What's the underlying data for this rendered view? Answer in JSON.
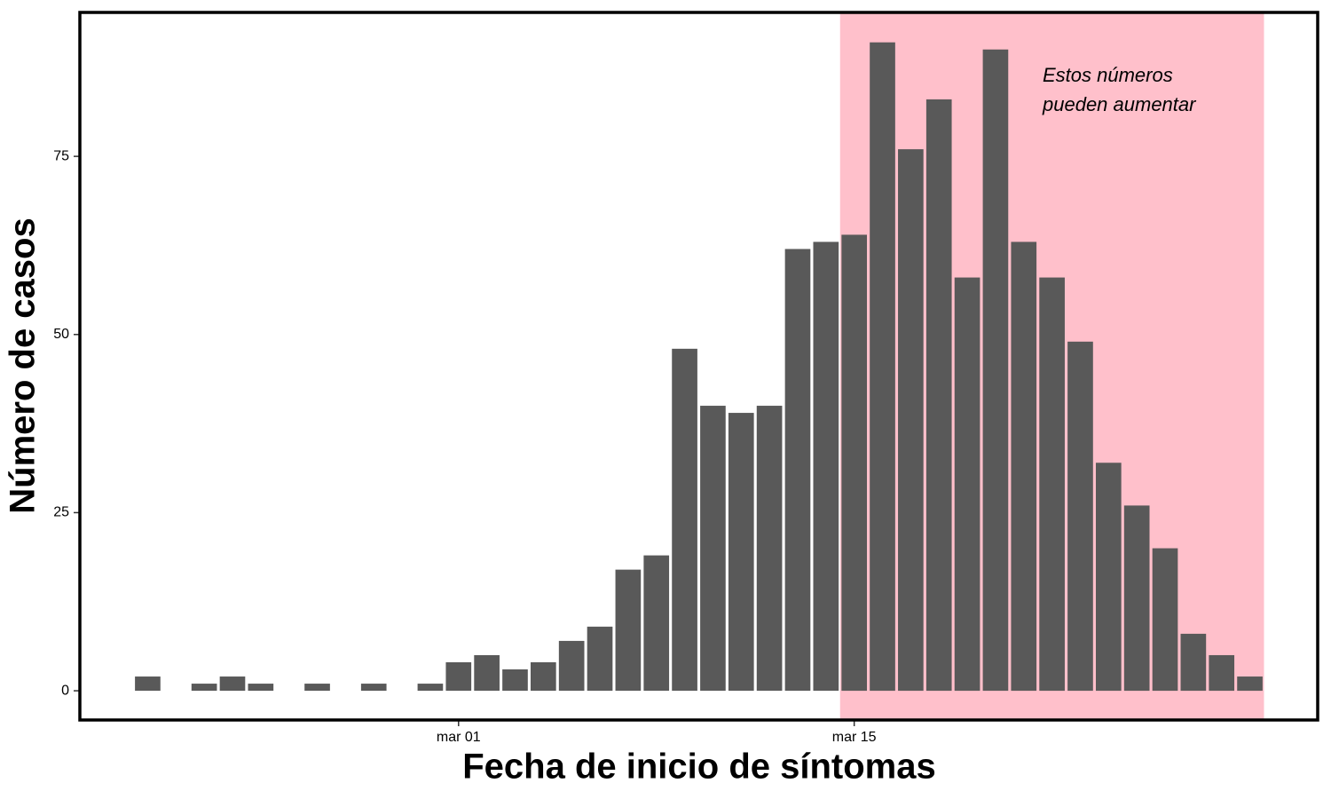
{
  "chart_data": {
    "type": "bar",
    "xlabel": "Fecha de inicio de síntomas",
    "ylabel": "Número de casos",
    "annotation": [
      "Estos números",
      "pueden aumentar"
    ],
    "x": [
      -10,
      -8,
      -7,
      -6,
      -4,
      -2,
      0,
      1,
      2,
      3,
      4,
      5,
      6,
      7,
      8,
      9,
      10,
      11,
      12,
      13,
      14,
      15,
      16,
      17,
      18,
      19,
      20,
      21,
      22,
      23,
      24,
      25,
      26,
      27,
      28,
      29
    ],
    "values": [
      2,
      1,
      2,
      1,
      1,
      1,
      1,
      4,
      5,
      3,
      4,
      7,
      9,
      17,
      19,
      48,
      40,
      39,
      40,
      62,
      63,
      64,
      91,
      76,
      83,
      58,
      90,
      63,
      58,
      49,
      32,
      26,
      20,
      8,
      5,
      2
    ],
    "color": "#595959",
    "shade": [
      14.5,
      29.5
    ],
    "shade_color": "#ffc0cb",
    "xlim": [
      -12.4,
      31.4
    ],
    "xticks": [
      {
        "value": 1,
        "label": "mar 01"
      },
      {
        "value": 15,
        "label": "mar 15"
      }
    ],
    "ylim": [
      -4.1,
      95.2
    ],
    "yticks": [
      0,
      25,
      50,
      75
    ]
  }
}
